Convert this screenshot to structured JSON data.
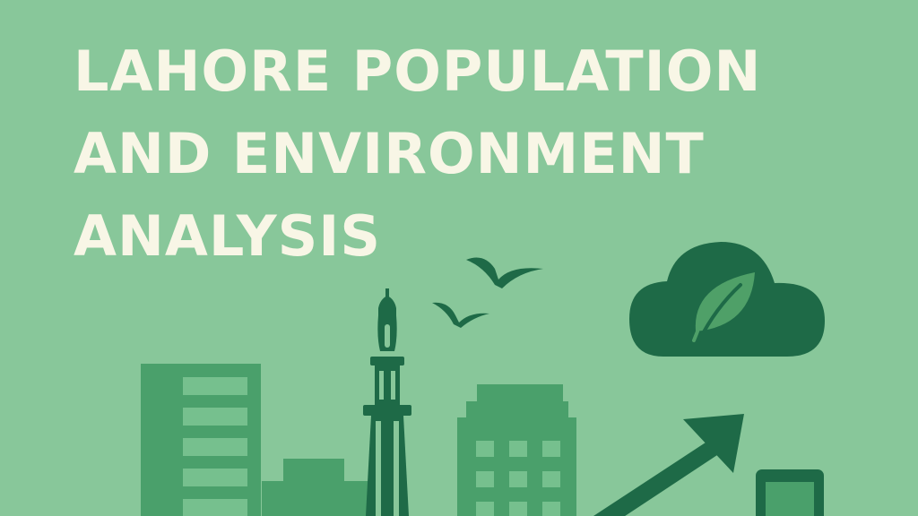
{
  "title": {
    "lines": [
      "LAHORE POPULATION",
      "AND ENVIRONMENT",
      "ANALYSIS"
    ]
  },
  "colors": {
    "background": "#88c79a",
    "title_text": "#f8f6e6",
    "building": "#4aa06b",
    "building_window": "#76c08e",
    "dark_green": "#1e6a47",
    "leaf": "#4fa068"
  },
  "icons": [
    "bird-icon",
    "bird-icon",
    "cloud-icon",
    "leaf-icon",
    "tower-icon",
    "arrow-up-right-icon",
    "device-icon"
  ]
}
